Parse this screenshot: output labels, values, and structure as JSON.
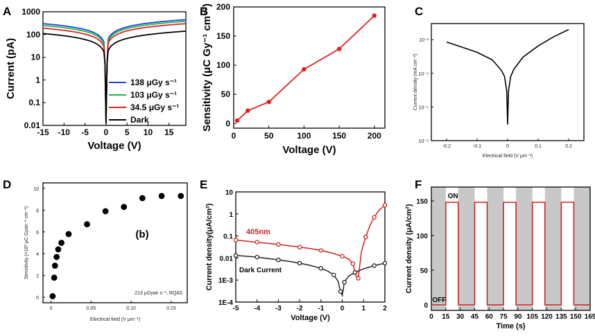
{
  "chart_data": [
    {
      "id": "A",
      "letter": "A",
      "type": "line",
      "yscale": "log",
      "xlabel": "Voltage (V)",
      "ylabel": "Current (pA)",
      "xlim": [
        -15,
        19
      ],
      "ylim": [
        0.01,
        1000
      ],
      "xticks": [
        "-15",
        "-10",
        "-5",
        "0",
        "5",
        "10",
        "15"
      ],
      "yticks": [
        "0.01",
        "0.1",
        "1",
        "10",
        "100",
        "1000"
      ],
      "series": [
        {
          "name": "138 μGy s⁻¹",
          "color": "#1f3fd9",
          "left": 300,
          "right": 450
        },
        {
          "name": "103 μGy s⁻¹",
          "color": "#19b84a",
          "left": 250,
          "right": 380
        },
        {
          "name": "34.5 μGy s⁻¹",
          "color": "#e02020",
          "left": 190,
          "right": 300
        },
        {
          "name": "Dark",
          "color": "#000000",
          "left": 110,
          "right": 140
        }
      ]
    },
    {
      "id": "B",
      "letter": "B",
      "type": "line",
      "xlabel": "Voltage (V)",
      "ylabel": "Sensitivity (μC Gy⁻¹ cm⁻²)",
      "xlim": [
        0,
        215
      ],
      "ylim": [
        -8,
        200
      ],
      "xticks": [
        "0",
        "50",
        "100",
        "150",
        "200"
      ],
      "yticks": [
        "0",
        "50",
        "100",
        "150",
        "200"
      ],
      "x": [
        5,
        20,
        50,
        100,
        150,
        200
      ],
      "y": [
        5,
        22,
        37,
        93,
        128,
        185
      ],
      "color": "#e02020"
    },
    {
      "id": "C",
      "letter": "C",
      "type": "line",
      "yscale": "log",
      "xlabel": "Electrical field (V μm⁻¹)",
      "ylabel": "Current density (mA cm⁻²)",
      "xlim": [
        -0.25,
        0.25
      ],
      "ylim": [
        1e-06,
        0.003
      ],
      "xticks": [
        "-0.2",
        "-0.1",
        "0",
        "0.1",
        "0.2"
      ],
      "yticks": [
        "10⁻⁶",
        "10⁻⁵",
        "10⁻⁴",
        "10⁻³"
      ],
      "x": [
        -0.2,
        -0.15,
        -0.1,
        -0.05,
        -0.02,
        -0.01,
        -0.003,
        0,
        0.003,
        0.01,
        0.02,
        0.05,
        0.1,
        0.15,
        0.2
      ],
      "y": [
        0.00085,
        0.0006,
        0.00042,
        0.00025,
        0.00012,
        8e-05,
        3e-05,
        3e-06,
        3e-05,
        8e-05,
        0.00013,
        0.0003,
        0.00065,
        0.0012,
        0.002
      ],
      "color": "#000000"
    },
    {
      "id": "D",
      "letter": "D",
      "type": "scatter",
      "xlabel": "Electrical field (V μm⁻¹)",
      "ylabel": "Sensitivity (×10³ μC Gyair⁻¹ cm⁻²)",
      "xlim": [
        -0.01,
        0.17
      ],
      "ylim": [
        -0.5,
        10.5
      ],
      "xticks": [
        "0",
        "0.05",
        "0.10",
        "0.15"
      ],
      "yticks": [
        "0",
        "2",
        "4",
        "6",
        "8",
        "10"
      ],
      "x": [
        0.002,
        0.004,
        0.005,
        0.007,
        0.009,
        0.013,
        0.022,
        0.045,
        0.068,
        0.091,
        0.114,
        0.138,
        0.162
      ],
      "y": [
        0.1,
        1.8,
        2.9,
        3.7,
        4.4,
        5.0,
        5.8,
        6.7,
        7.9,
        8.3,
        9.1,
        9.3,
        9.3
      ],
      "annotation": "(b)",
      "note": "213 μGyair s⁻¹, RQA5",
      "color": "#000000"
    },
    {
      "id": "E",
      "letter": "E",
      "type": "line",
      "yscale": "log",
      "xlabel": "Voltage (V)",
      "ylabel": "Current density(μA/cm²)",
      "xlim": [
        -5,
        2
      ],
      "ylim": [
        0.0001,
        10
      ],
      "xticks": [
        "-5",
        "-4",
        "-3",
        "-2",
        "-1",
        "0",
        "1",
        "2"
      ],
      "yticks": [
        "1E-4",
        "1E-3",
        "0.01",
        "0.1",
        "1",
        "10"
      ],
      "series": [
        {
          "name": "405nm",
          "color": "#d02020",
          "x": [
            -5,
            -4.5,
            -4,
            -3.5,
            -3,
            -2.5,
            -2,
            -1.5,
            -1,
            -0.5,
            0,
            0.3,
            0.5,
            0.65,
            0.75,
            0.9,
            1.1,
            1.3,
            1.5,
            1.7,
            2
          ],
          "y": [
            0.065,
            0.058,
            0.052,
            0.046,
            0.041,
            0.036,
            0.031,
            0.027,
            0.022,
            0.017,
            0.012,
            0.009,
            0.0055,
            0.0015,
            0.0012,
            0.02,
            0.09,
            0.3,
            0.7,
            1.4,
            2.5
          ]
        },
        {
          "name": "Dark Current",
          "color": "#222222",
          "x": [
            -5,
            -4.5,
            -4,
            -3.5,
            -3,
            -2.5,
            -2,
            -1.5,
            -1,
            -0.7,
            -0.4,
            -0.2,
            -0.08,
            0,
            0.1,
            0.3,
            0.6,
            1,
            1.5,
            2
          ],
          "y": [
            0.013,
            0.012,
            0.011,
            0.0095,
            0.0082,
            0.007,
            0.0058,
            0.0046,
            0.0034,
            0.0026,
            0.0017,
            0.0009,
            0.0003,
            0.0002,
            0.0008,
            0.0015,
            0.0022,
            0.0032,
            0.0045,
            0.0058
          ]
        }
      ]
    },
    {
      "id": "F",
      "letter": "F",
      "type": "line",
      "xlabel": "Time (s)",
      "ylabel": "Current density (μA/cm²)",
      "xlim": [
        0,
        165
      ],
      "ylim": [
        -8,
        170
      ],
      "xticks": [
        "0",
        "15",
        "30",
        "45",
        "60",
        "75",
        "90",
        "105",
        "120",
        "135",
        "150",
        "165"
      ],
      "yticks": [
        "0",
        "50",
        "100",
        "150"
      ],
      "on_intervals": [
        [
          15,
          28
        ],
        [
          45,
          58
        ],
        [
          75,
          88
        ],
        [
          105,
          118
        ],
        [
          135,
          148
        ]
      ],
      "on_value": 148,
      "off_value": 0,
      "shaded_off_intervals": [
        [
          0,
          15
        ],
        [
          28,
          45
        ],
        [
          58,
          75
        ],
        [
          88,
          105
        ],
        [
          118,
          135
        ],
        [
          148,
          165
        ]
      ],
      "label_on": "ON",
      "label_off": "OFF",
      "color": "#d02020",
      "shade_color": "#c8c8c8"
    }
  ]
}
